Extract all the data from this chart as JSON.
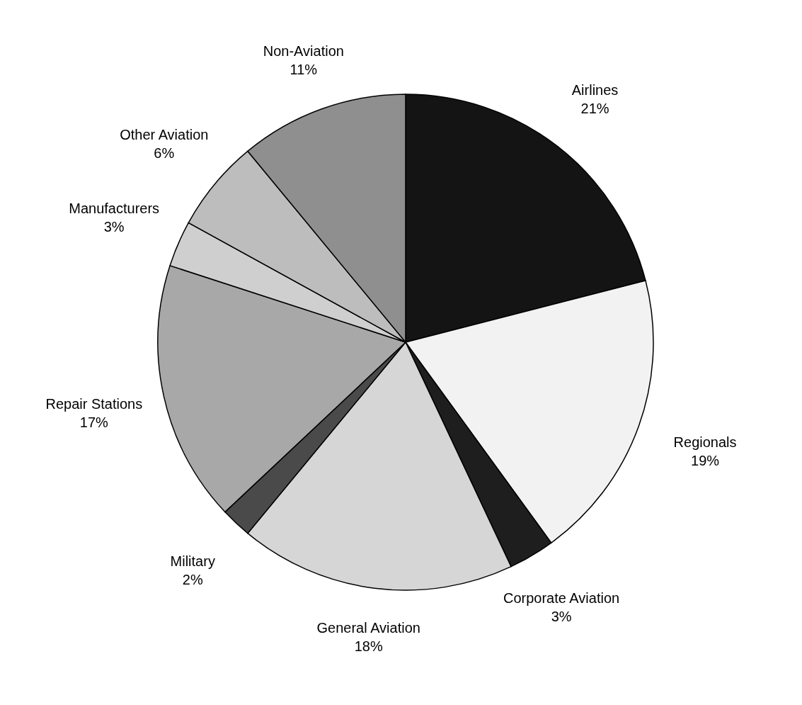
{
  "chart_data": {
    "type": "pie",
    "categories": [
      "Airlines",
      "Regionals",
      "Corporate Aviation",
      "General Aviation",
      "Military",
      "Repair Stations",
      "Manufacturers",
      "Other Aviation",
      "Non-Aviation"
    ],
    "values": [
      21,
      19,
      3,
      18,
      2,
      17,
      3,
      6,
      11
    ],
    "value_labels": [
      "21%",
      "19%",
      "3%",
      "18%",
      "2%",
      "17%",
      "3%",
      "6%",
      "11%"
    ],
    "colors": [
      "#141414",
      "#f2f2f2",
      "#1e1e1e",
      "#d6d6d6",
      "#4a4a4a",
      "#a8a8a8",
      "#cfcfcf",
      "#bdbdbd",
      "#8f8f8f"
    ]
  }
}
